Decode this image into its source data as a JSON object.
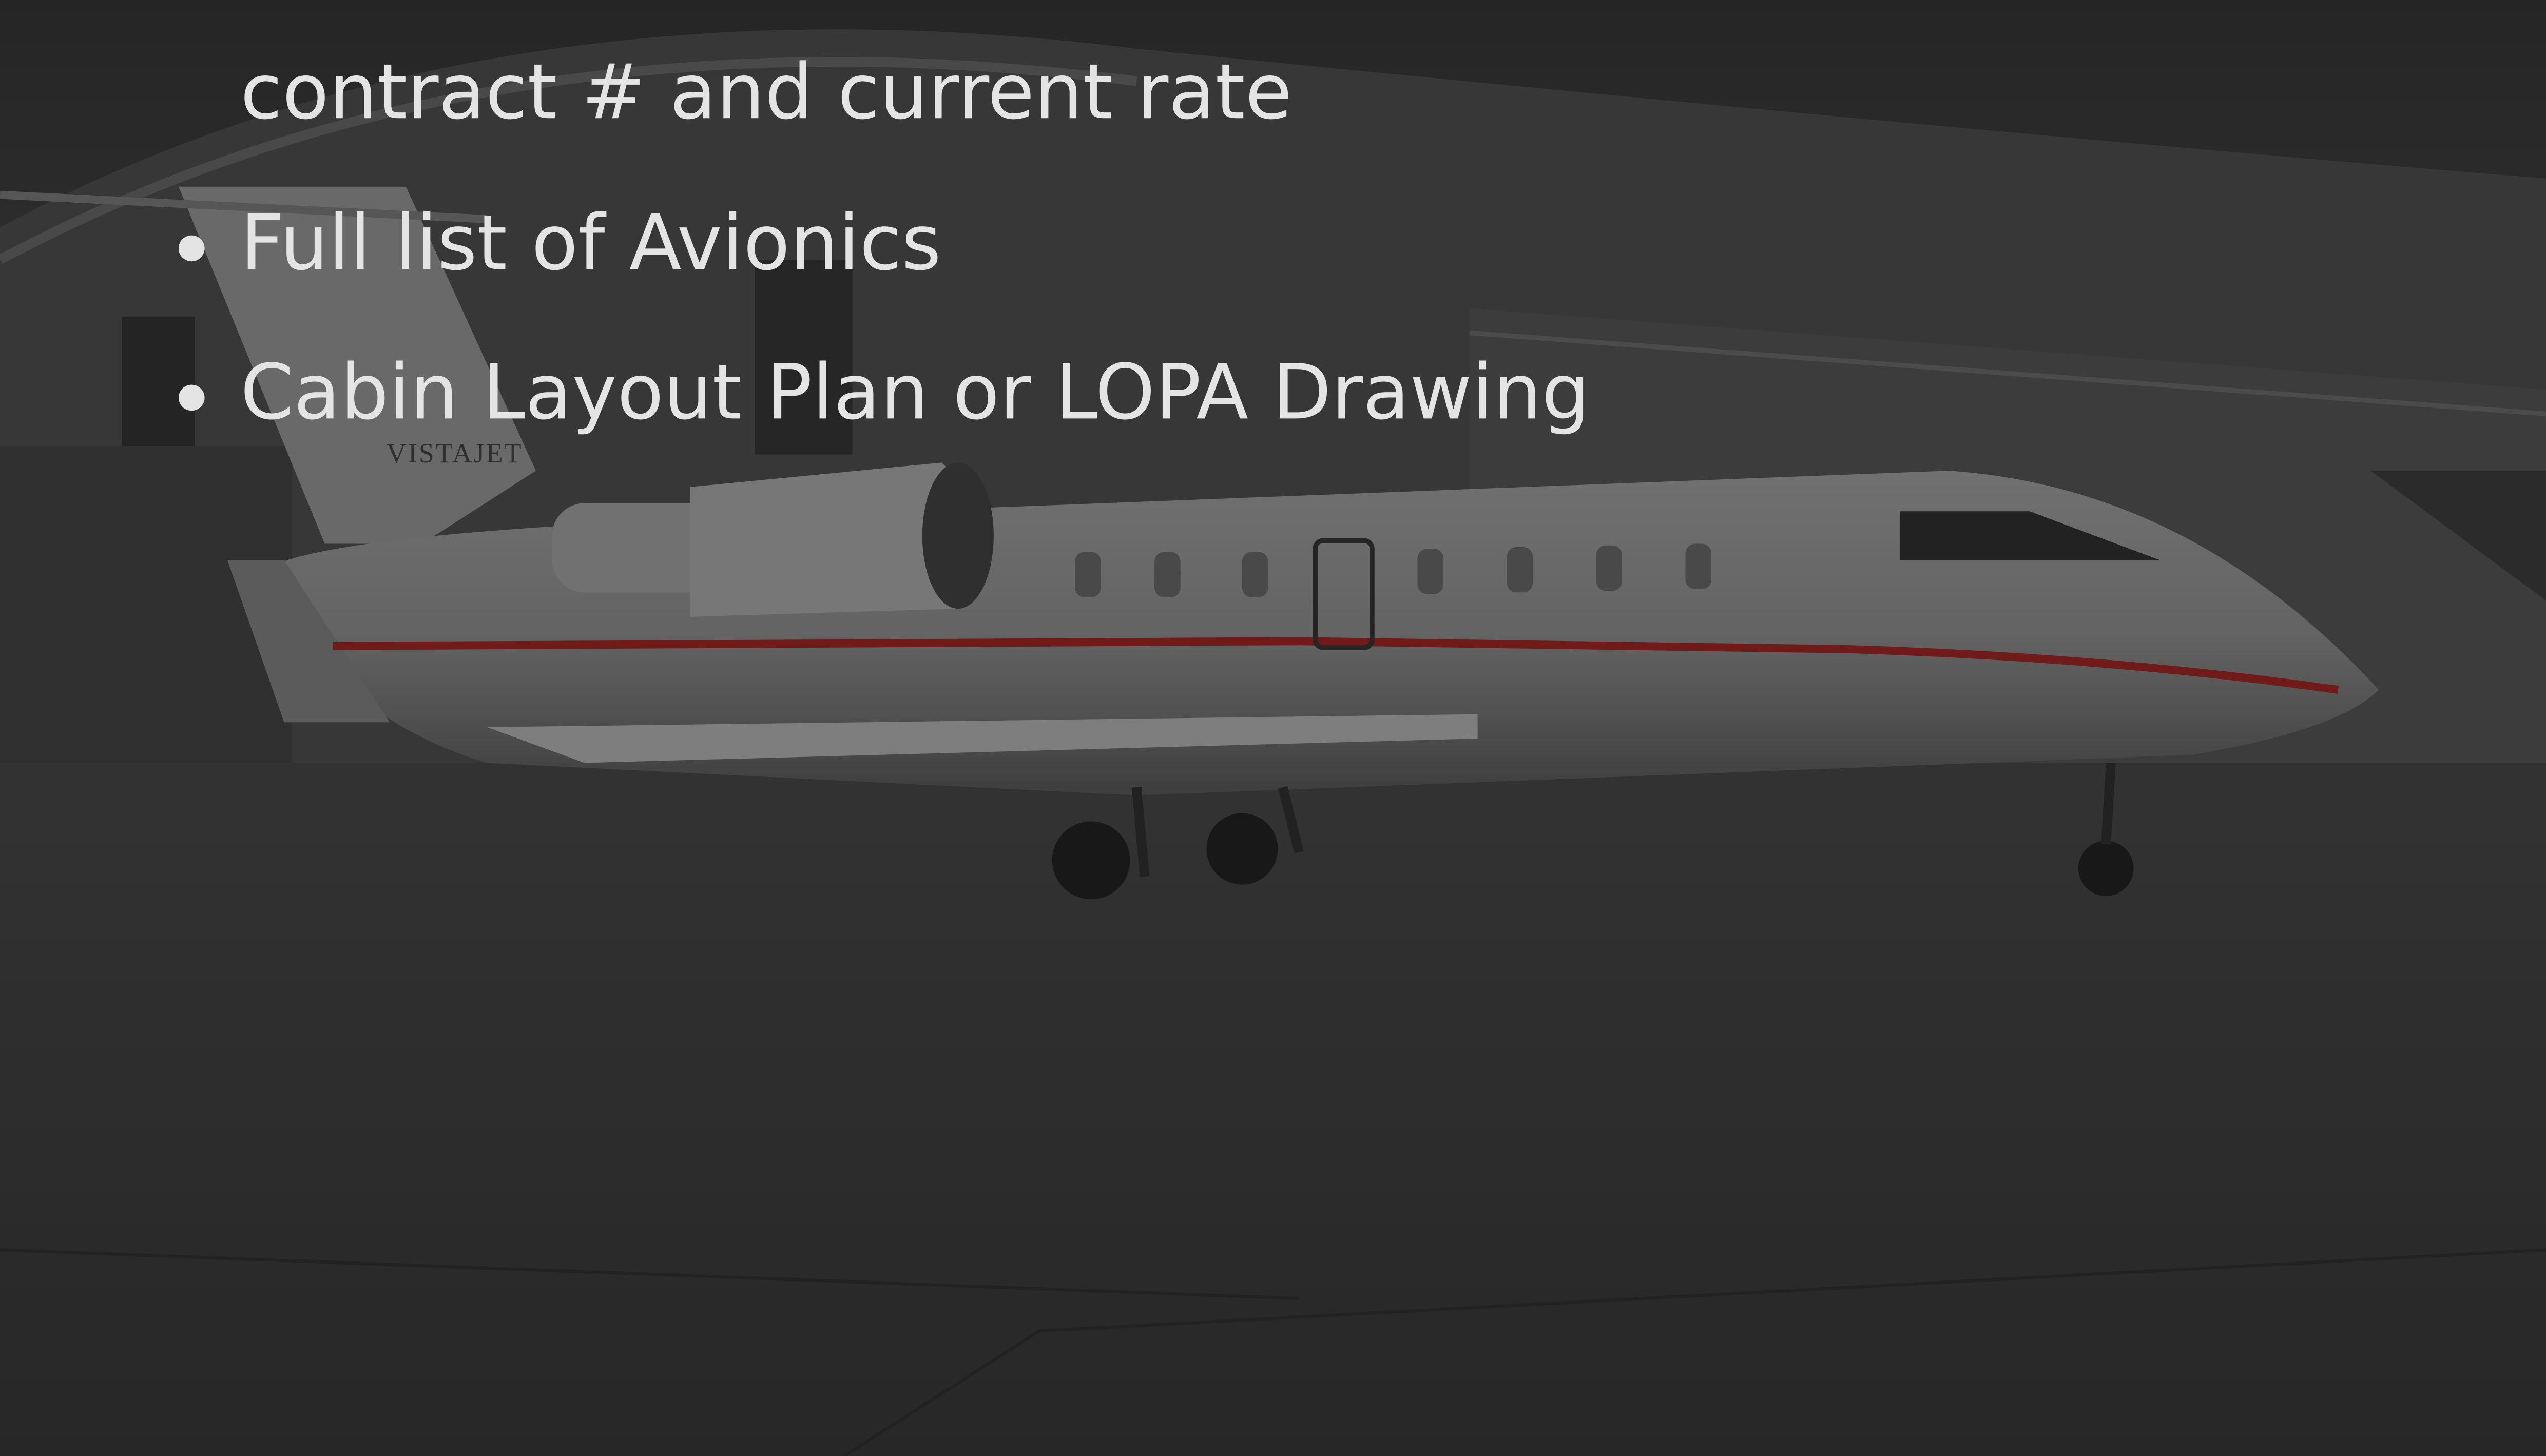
{
  "list": {
    "continuation": "contract # and current rate",
    "items": [
      "Full list of Avionics",
      "Cabin Layout Plan or LOPA Drawing"
    ]
  },
  "background": {
    "livery_text": "VISTAJET"
  }
}
